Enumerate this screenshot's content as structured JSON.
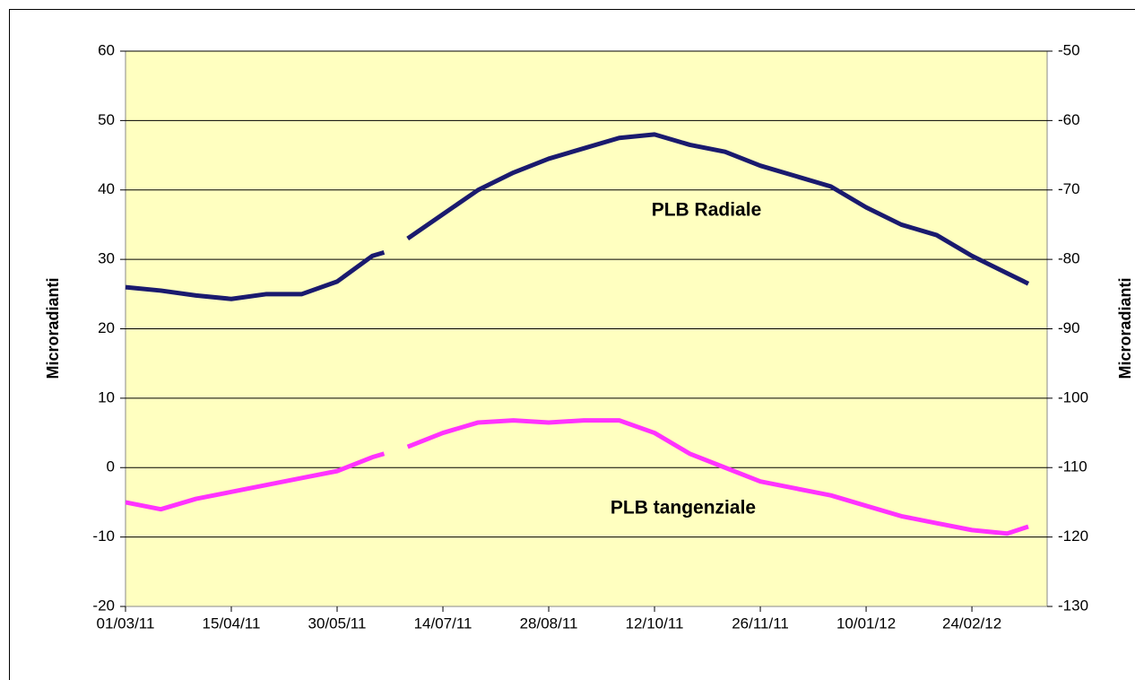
{
  "chart_data": {
    "type": "line",
    "y_label": "Microradianti",
    "y2_label": "Microradianti",
    "annotations": [
      "PLB Radiale",
      "PLB tangenziale"
    ],
    "x": [
      "01/03/11",
      "16/03/11",
      "31/03/11",
      "15/04/11",
      "30/04/11",
      "15/05/11",
      "30/05/11",
      "14/06/11",
      "19/06/11",
      "24/06/11",
      "29/06/11",
      "14/07/11",
      "29/07/11",
      "13/08/11",
      "28/08/11",
      "12/09/11",
      "27/09/11",
      "12/10/11",
      "27/10/11",
      "11/11/11",
      "26/11/11",
      "11/12/11",
      "26/12/11",
      "10/01/12",
      "25/01/12",
      "09/02/12",
      "24/02/12",
      "10/03/12",
      "19/03/12"
    ],
    "series": [
      {
        "name": "PLB Radiale",
        "color": "#1a1a6e",
        "values": [
          26,
          25.5,
          24.8,
          24.3,
          25,
          25,
          26.8,
          30.5,
          31,
          null,
          33,
          36.5,
          40,
          42.5,
          44.5,
          46,
          47.5,
          48,
          46.5,
          45.5,
          43.5,
          42,
          40.5,
          37.5,
          35,
          33.5,
          30.5,
          28,
          26.5
        ]
      },
      {
        "name": "PLB tangenziale",
        "color": "#ff33ff",
        "axis": "y2",
        "values": [
          -115,
          -116,
          -114.5,
          -113.5,
          -112.5,
          -111.5,
          -110.5,
          -108.5,
          -108,
          null,
          -107,
          -105,
          -103.5,
          -103.2,
          -103.5,
          -103.2,
          -103.2,
          -105,
          -108,
          -110,
          -112,
          -113,
          -114,
          -115.5,
          -117,
          -118,
          -119,
          -119.5,
          -118.5
        ]
      }
    ],
    "xlim": [
      "01/03/11",
      "27/03/12"
    ],
    "xticks": [
      "01/03/11",
      "15/04/11",
      "30/05/11",
      "14/07/11",
      "28/08/11",
      "12/10/11",
      "26/11/11",
      "10/01/12",
      "24/02/12"
    ],
    "ylim": [
      -20,
      60
    ],
    "yticks": [
      -20,
      -10,
      0,
      10,
      20,
      30,
      40,
      50,
      60
    ],
    "y2lim": [
      -130,
      -50
    ],
    "y2ticks": [
      -130,
      -120,
      -110,
      -100,
      -90,
      -80,
      -70,
      -60,
      -50
    ],
    "grid": true
  }
}
